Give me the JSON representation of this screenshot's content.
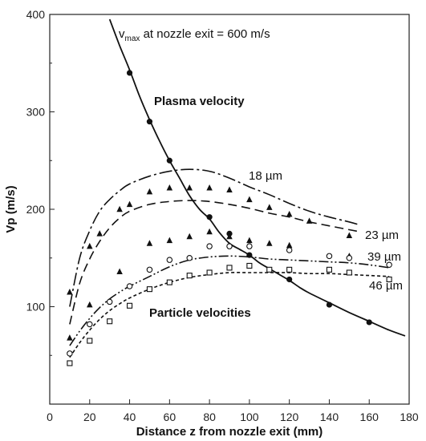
{
  "chart_data": {
    "type": "line",
    "xlabel": "Distance z from nozzle exit (mm)",
    "ylabel": "Vp (m/s)",
    "xlim": [
      0,
      180
    ],
    "ylim": [
      0,
      400
    ],
    "x_ticks": [
      0,
      20,
      40,
      60,
      80,
      100,
      120,
      140,
      160,
      180
    ],
    "y_ticks": [
      100,
      200,
      300,
      400
    ],
    "grid": false,
    "annotations": {
      "vmax_prefix": "v",
      "vmax_sub": "max",
      "vmax_rest": " at nozzle exit = 600 m/s",
      "plasma_label": "Plasma velocity",
      "particle_label": "Particle velocities"
    },
    "series": [
      {
        "name": "Plasma velocity",
        "line_style": "solid",
        "marker": "filled-circle",
        "curve": {
          "x": [
            30,
            35,
            40,
            45,
            50,
            55,
            60,
            65,
            70,
            75,
            80,
            85,
            90,
            95,
            100,
            105,
            110,
            115,
            120,
            125,
            130,
            140,
            150,
            160,
            170,
            178
          ],
          "y": [
            395,
            368,
            343,
            316,
            292,
            270,
            250,
            232,
            214,
            200,
            190,
            176,
            165,
            159,
            153,
            145,
            139,
            133,
            127,
            120,
            114,
            104,
            94,
            85,
            76,
            70
          ]
        },
        "points": {
          "x": [
            40,
            50,
            60,
            80,
            90,
            100,
            120,
            140,
            160
          ],
          "y": [
            340,
            290,
            250,
            192,
            175,
            153,
            128,
            102,
            84
          ]
        }
      },
      {
        "name": "18 µm",
        "line_style": "dashdot",
        "marker": "filled-triangle",
        "curve": {
          "x": [
            10,
            15,
            20,
            25,
            30,
            35,
            40,
            50,
            60,
            70,
            80,
            90,
            100,
            110,
            120,
            130,
            140,
            150,
            155
          ],
          "y": [
            100,
            150,
            178,
            198,
            210,
            219,
            226,
            234,
            239,
            241,
            239,
            232,
            223,
            215,
            206,
            198,
            192,
            187,
            184
          ]
        },
        "points": {
          "x": [
            10,
            20,
            25,
            35,
            40,
            50,
            60,
            70,
            80,
            90,
            100,
            110,
            120,
            130,
            150
          ],
          "y": [
            115,
            162,
            175,
            200,
            205,
            218,
            222,
            222,
            222,
            220,
            210,
            202,
            195,
            188,
            173
          ]
        }
      },
      {
        "name": "23 µm",
        "line_style": "dashed",
        "marker": "filled-triangle",
        "curve": {
          "x": [
            10,
            15,
            20,
            25,
            30,
            35,
            40,
            50,
            60,
            70,
            80,
            90,
            100,
            110,
            120,
            130,
            140,
            150,
            155
          ],
          "y": [
            82,
            124,
            149,
            167,
            181,
            191,
            198,
            205,
            208,
            209,
            208,
            205,
            201,
            196,
            192,
            187,
            183,
            179,
            177
          ]
        },
        "points": {
          "x": [
            10,
            20,
            35,
            50,
            60,
            70,
            80,
            90,
            100,
            110,
            120,
            150
          ],
          "y": [
            68,
            102,
            136,
            165,
            168,
            172,
            177,
            172,
            168,
            165,
            163,
            152
          ]
        }
      },
      {
        "name": "39 µm",
        "line_style": "dash-dot-dot",
        "marker": "open-circle",
        "curve": {
          "x": [
            10,
            15,
            20,
            25,
            30,
            35,
            40,
            50,
            60,
            70,
            80,
            90,
            100,
            110,
            120,
            130,
            140,
            150,
            160,
            170
          ],
          "y": [
            60,
            75,
            88,
            99,
            108,
            115,
            121,
            131,
            141,
            148,
            151,
            152,
            151,
            149,
            148,
            147,
            146,
            145,
            143,
            140
          ]
        },
        "points": {
          "x": [
            10,
            20,
            30,
            40,
            50,
            60,
            70,
            80,
            90,
            100,
            120,
            140,
            150,
            170
          ],
          "y": [
            52,
            82,
            105,
            121,
            138,
            148,
            150,
            162,
            162,
            162,
            158,
            152,
            150,
            143
          ]
        }
      },
      {
        "name": "46 µm",
        "line_style": "dotted",
        "marker": "open-square",
        "curve": {
          "x": [
            10,
            15,
            20,
            25,
            30,
            35,
            40,
            50,
            60,
            70,
            80,
            90,
            100,
            110,
            120,
            130,
            140,
            150,
            160,
            170
          ],
          "y": [
            48,
            63,
            76,
            87,
            96,
            103,
            109,
            118,
            125,
            130,
            133,
            135,
            135,
            135,
            135,
            134,
            134,
            133,
            132,
            131
          ]
        },
        "points": {
          "x": [
            10,
            20,
            30,
            40,
            50,
            60,
            70,
            80,
            90,
            100,
            110,
            120,
            140,
            150,
            170
          ],
          "y": [
            42,
            65,
            85,
            101,
            118,
            125,
            132,
            135,
            140,
            142,
            138,
            138,
            138,
            135,
            128
          ]
        }
      }
    ]
  }
}
